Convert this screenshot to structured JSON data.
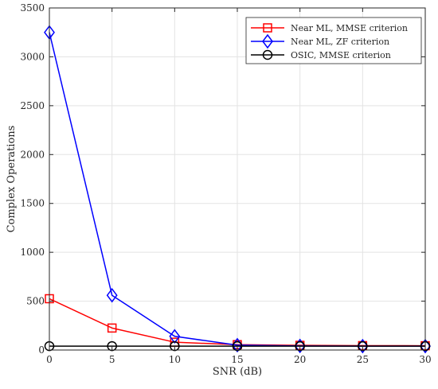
{
  "chart_data": {
    "type": "line",
    "xlabel": "SNR (dB)",
    "ylabel": "Complex Operations",
    "x": [
      0,
      5,
      10,
      15,
      20,
      25,
      30
    ],
    "xlim": [
      0,
      30
    ],
    "ylim": [
      0,
      3500
    ],
    "xticks": [
      0,
      5,
      10,
      15,
      20,
      25,
      30
    ],
    "yticks": [
      0,
      500,
      1000,
      1500,
      2000,
      2500,
      3000,
      3500
    ],
    "grid": true,
    "legend_position": "top-right",
    "series": [
      {
        "name": "Near ML, MMSE criterion",
        "color": "#ff0000",
        "marker": "square",
        "values": [
          525,
          225,
          80,
          55,
          48,
          45,
          44
        ]
      },
      {
        "name": "Near ML, ZF criterion",
        "color": "#0000ff",
        "marker": "diamond",
        "values": [
          3250,
          560,
          140,
          50,
          42,
          40,
          40
        ]
      },
      {
        "name": "OSIC, MMSE criterion",
        "color": "#000000",
        "marker": "circle",
        "values": [
          40,
          40,
          40,
          40,
          40,
          40,
          40
        ]
      }
    ]
  }
}
